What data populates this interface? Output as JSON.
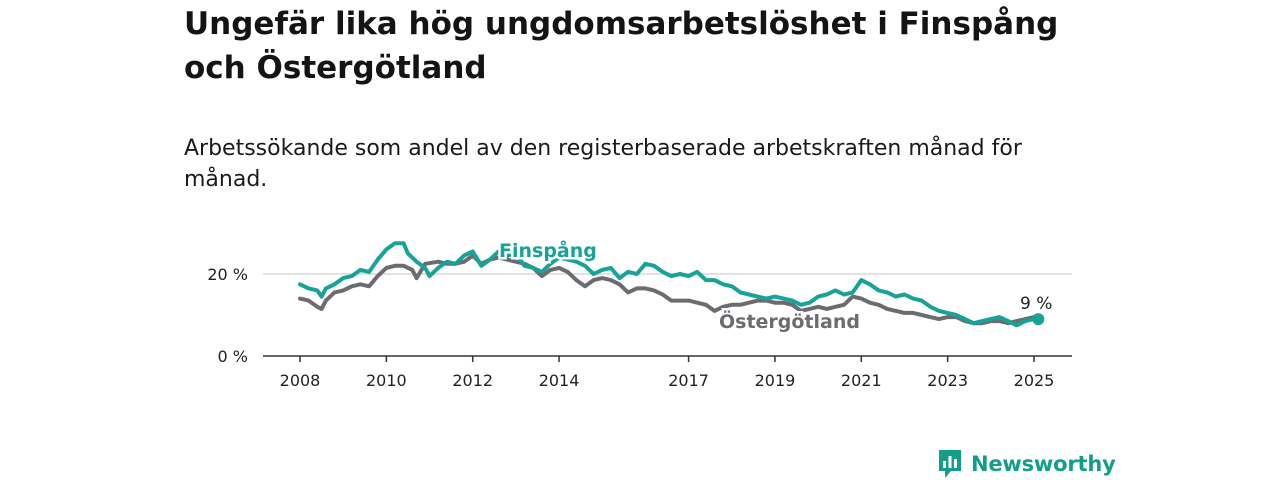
{
  "title": "Ungefär lika hög ungdomsarbetslöshet i Finspång och Östergötland",
  "subtitle": "Arbetssökande som andel av den registerbaserade arbetskraften månad för månad.",
  "logo_text": "Newsworthy",
  "chart_data": {
    "type": "line",
    "title": "Ungefär lika hög ungdomsarbetslöshet i Finspång och Östergötland",
    "subtitle": "Arbetssökande som andel av den registerbaserade arbetskraften månad för månad.",
    "xlabel": "",
    "ylabel": "",
    "x_ticks": [
      "2008",
      "2010",
      "2012",
      "2014",
      "2017",
      "2019",
      "2021",
      "2023",
      "2025"
    ],
    "y_ticks": [
      "0 %",
      "20 %"
    ],
    "ylim": [
      0,
      30
    ],
    "xlim": [
      2007.7,
      2025.8
    ],
    "grid": true,
    "end_label": "9 %",
    "series": [
      {
        "name": "Finspång",
        "color": "#17a398",
        "points": [
          [
            2008.0,
            17.5
          ],
          [
            2008.2,
            16.5
          ],
          [
            2008.4,
            16.0
          ],
          [
            2008.5,
            14.5
          ],
          [
            2008.6,
            16.5
          ],
          [
            2008.8,
            17.5
          ],
          [
            2009.0,
            19.0
          ],
          [
            2009.2,
            19.5
          ],
          [
            2009.4,
            21.0
          ],
          [
            2009.6,
            20.5
          ],
          [
            2009.8,
            23.5
          ],
          [
            2010.0,
            26.0
          ],
          [
            2010.2,
            27.5
          ],
          [
            2010.4,
            27.5
          ],
          [
            2010.5,
            25.0
          ],
          [
            2010.7,
            23.0
          ],
          [
            2010.9,
            21.5
          ],
          [
            2011.0,
            19.5
          ],
          [
            2011.2,
            21.5
          ],
          [
            2011.4,
            23.0
          ],
          [
            2011.6,
            22.5
          ],
          [
            2011.8,
            24.5
          ],
          [
            2012.0,
            25.5
          ],
          [
            2012.2,
            22.0
          ],
          [
            2012.4,
            23.5
          ],
          [
            2012.6,
            25.5
          ],
          [
            2012.8,
            24.5
          ],
          [
            2013.0,
            25.0
          ],
          [
            2013.2,
            22.0
          ],
          [
            2013.4,
            21.5
          ],
          [
            2013.6,
            20.5
          ],
          [
            2013.8,
            22.5
          ],
          [
            2014.0,
            24.0
          ],
          [
            2014.2,
            23.5
          ],
          [
            2014.4,
            23.0
          ],
          [
            2014.6,
            22.0
          ],
          [
            2014.8,
            20.0
          ],
          [
            2015.0,
            21.0
          ],
          [
            2015.2,
            21.5
          ],
          [
            2015.4,
            19.0
          ],
          [
            2015.6,
            20.5
          ],
          [
            2015.8,
            20.0
          ],
          [
            2016.0,
            22.5
          ],
          [
            2016.2,
            22.0
          ],
          [
            2016.4,
            20.5
          ],
          [
            2016.6,
            19.5
          ],
          [
            2016.8,
            20.0
          ],
          [
            2017.0,
            19.5
          ],
          [
            2017.2,
            20.5
          ],
          [
            2017.4,
            18.5
          ],
          [
            2017.6,
            18.5
          ],
          [
            2017.8,
            17.5
          ],
          [
            2018.0,
            17.0
          ],
          [
            2018.2,
            15.5
          ],
          [
            2018.4,
            15.0
          ],
          [
            2018.6,
            14.5
          ],
          [
            2018.8,
            14.0
          ],
          [
            2019.0,
            14.5
          ],
          [
            2019.2,
            14.0
          ],
          [
            2019.4,
            13.5
          ],
          [
            2019.6,
            12.5
          ],
          [
            2019.8,
            13.0
          ],
          [
            2020.0,
            14.5
          ],
          [
            2020.2,
            15.0
          ],
          [
            2020.4,
            16.0
          ],
          [
            2020.6,
            15.0
          ],
          [
            2020.8,
            15.5
          ],
          [
            2021.0,
            18.5
          ],
          [
            2021.2,
            17.5
          ],
          [
            2021.4,
            16.0
          ],
          [
            2021.6,
            15.5
          ],
          [
            2021.8,
            14.5
          ],
          [
            2022.0,
            15.0
          ],
          [
            2022.2,
            14.0
          ],
          [
            2022.4,
            13.5
          ],
          [
            2022.6,
            12.0
          ],
          [
            2022.8,
            11.0
          ],
          [
            2023.0,
            10.5
          ],
          [
            2023.2,
            10.0
          ],
          [
            2023.4,
            9.0
          ],
          [
            2023.6,
            8.0
          ],
          [
            2023.8,
            8.5
          ],
          [
            2024.0,
            9.0
          ],
          [
            2024.2,
            9.5
          ],
          [
            2024.4,
            8.5
          ],
          [
            2024.6,
            7.5
          ],
          [
            2024.8,
            8.5
          ],
          [
            2025.0,
            9.0
          ],
          [
            2025.1,
            9.0
          ]
        ]
      },
      {
        "name": "Östergötland",
        "color": "#6c6b70",
        "points": [
          [
            2008.0,
            14.0
          ],
          [
            2008.2,
            13.5
          ],
          [
            2008.4,
            12.0
          ],
          [
            2008.5,
            11.5
          ],
          [
            2008.6,
            13.5
          ],
          [
            2008.8,
            15.5
          ],
          [
            2009.0,
            16.0
          ],
          [
            2009.2,
            17.0
          ],
          [
            2009.4,
            17.5
          ],
          [
            2009.6,
            17.0
          ],
          [
            2009.8,
            19.5
          ],
          [
            2010.0,
            21.5
          ],
          [
            2010.2,
            22.0
          ],
          [
            2010.4,
            22.0
          ],
          [
            2010.6,
            21.0
          ],
          [
            2010.7,
            19.0
          ],
          [
            2010.9,
            22.5
          ],
          [
            2011.2,
            23.0
          ],
          [
            2011.4,
            22.5
          ],
          [
            2011.6,
            22.5
          ],
          [
            2011.8,
            23.0
          ],
          [
            2012.0,
            24.5
          ],
          [
            2012.2,
            22.5
          ],
          [
            2012.4,
            23.5
          ],
          [
            2012.6,
            24.0
          ],
          [
            2012.8,
            23.5
          ],
          [
            2013.0,
            23.0
          ],
          [
            2013.2,
            22.5
          ],
          [
            2013.4,
            21.5
          ],
          [
            2013.6,
            19.5
          ],
          [
            2013.8,
            21.0
          ],
          [
            2014.0,
            21.5
          ],
          [
            2014.2,
            20.5
          ],
          [
            2014.4,
            18.5
          ],
          [
            2014.6,
            17.0
          ],
          [
            2014.8,
            18.5
          ],
          [
            2015.0,
            19.0
          ],
          [
            2015.2,
            18.5
          ],
          [
            2015.4,
            17.5
          ],
          [
            2015.6,
            15.5
          ],
          [
            2015.8,
            16.5
          ],
          [
            2016.0,
            16.5
          ],
          [
            2016.2,
            16.0
          ],
          [
            2016.4,
            15.0
          ],
          [
            2016.6,
            13.5
          ],
          [
            2016.8,
            13.5
          ],
          [
            2017.0,
            13.5
          ],
          [
            2017.2,
            13.0
          ],
          [
            2017.4,
            12.5
          ],
          [
            2017.6,
            11.0
          ],
          [
            2017.8,
            12.0
          ],
          [
            2018.0,
            12.5
          ],
          [
            2018.2,
            12.5
          ],
          [
            2018.4,
            13.0
          ],
          [
            2018.6,
            13.5
          ],
          [
            2018.8,
            13.5
          ],
          [
            2019.0,
            13.0
          ],
          [
            2019.2,
            13.0
          ],
          [
            2019.4,
            12.5
          ],
          [
            2019.6,
            11.0
          ],
          [
            2019.8,
            11.5
          ],
          [
            2020.0,
            12.0
          ],
          [
            2020.2,
            11.5
          ],
          [
            2020.4,
            12.0
          ],
          [
            2020.6,
            12.5
          ],
          [
            2020.8,
            14.5
          ],
          [
            2021.0,
            14.0
          ],
          [
            2021.2,
            13.0
          ],
          [
            2021.4,
            12.5
          ],
          [
            2021.6,
            11.5
          ],
          [
            2021.8,
            11.0
          ],
          [
            2022.0,
            10.5
          ],
          [
            2022.2,
            10.5
          ],
          [
            2022.4,
            10.0
          ],
          [
            2022.6,
            9.5
          ],
          [
            2022.8,
            9.0
          ],
          [
            2023.0,
            9.5
          ],
          [
            2023.2,
            9.5
          ],
          [
            2023.4,
            8.5
          ],
          [
            2023.6,
            8.0
          ],
          [
            2023.8,
            8.0
          ],
          [
            2024.0,
            8.5
          ],
          [
            2024.2,
            8.5
          ],
          [
            2024.4,
            8.0
          ],
          [
            2024.6,
            8.5
          ],
          [
            2024.8,
            9.0
          ],
          [
            2025.0,
            9.5
          ],
          [
            2025.1,
            9.0
          ]
        ]
      }
    ]
  }
}
